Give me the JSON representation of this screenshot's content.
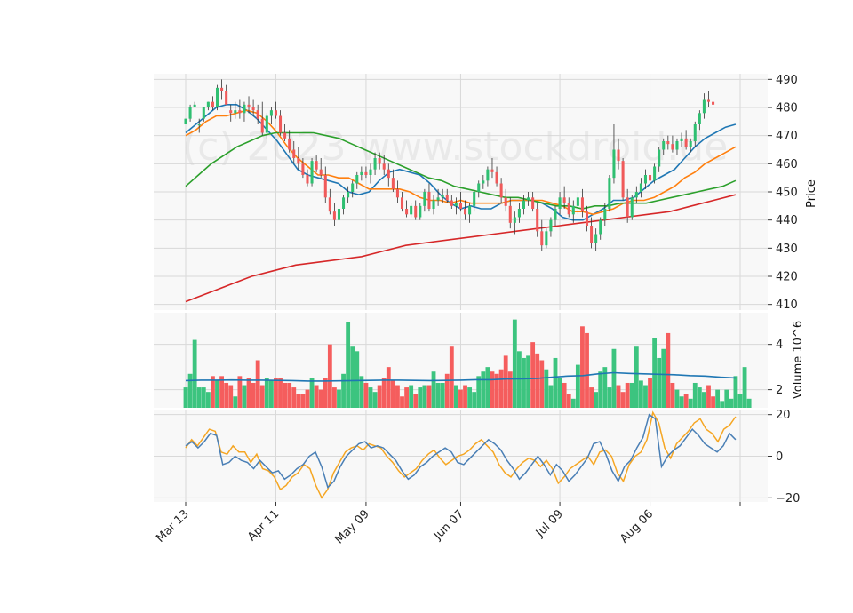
{
  "watermark": "(c) 2023 www.stockdroid.de",
  "chart_data": {
    "type": "candlestick",
    "x_axis": {
      "tick_labels": [
        "Mar 13",
        "Apr 11",
        "May 09",
        "Jun 07",
        "Jul 09",
        "Aug 06"
      ],
      "tick_index": [
        0,
        20,
        40,
        61,
        83,
        103
      ],
      "extra_tick_index": 123,
      "n_bars": 123
    },
    "price_panel": {
      "ylabel": "Price",
      "ylim": [
        408,
        492
      ],
      "yticks": [
        410,
        420,
        430,
        440,
        450,
        460,
        470,
        480,
        490
      ],
      "candles": [
        [
          474,
          476,
          474,
          476
        ],
        [
          476,
          481,
          475,
          480
        ],
        [
          480,
          482,
          480,
          481
        ],
        [
          474,
          476,
          471,
          474
        ],
        [
          476,
          480,
          475,
          480
        ],
        [
          480,
          482,
          479,
          482
        ],
        [
          482,
          484,
          479,
          480
        ],
        [
          480,
          488,
          479,
          487
        ],
        [
          487,
          490,
          483,
          486
        ],
        [
          486,
          488,
          481,
          481
        ],
        [
          479,
          481,
          475,
          478
        ],
        [
          478,
          482,
          476,
          479
        ],
        [
          479,
          483,
          476,
          478
        ],
        [
          478,
          482,
          475,
          481
        ],
        [
          481,
          484,
          478,
          480
        ],
        [
          480,
          483,
          477,
          479
        ],
        [
          479,
          481,
          474,
          476
        ],
        [
          476,
          482,
          470,
          471
        ],
        [
          471,
          478,
          469,
          477
        ],
        [
          477,
          480,
          474,
          479
        ],
        [
          479,
          482,
          476,
          477
        ],
        [
          477,
          479,
          470,
          471
        ],
        [
          471,
          474,
          468,
          469
        ],
        [
          469,
          472,
          464,
          465
        ],
        [
          465,
          468,
          460,
          462
        ],
        [
          462,
          466,
          458,
          460
        ],
        [
          460,
          462,
          455,
          456
        ],
        [
          456,
          458,
          452,
          453
        ],
        [
          453,
          462,
          452,
          461
        ],
        [
          461,
          463,
          457,
          458
        ],
        [
          458,
          462,
          455,
          456
        ],
        [
          456,
          459,
          446,
          448
        ],
        [
          448,
          451,
          442,
          443
        ],
        [
          443,
          446,
          438,
          440
        ],
        [
          440,
          446,
          437,
          444
        ],
        [
          444,
          449,
          442,
          448
        ],
        [
          448,
          452,
          446,
          450
        ],
        [
          450,
          454,
          448,
          453
        ],
        [
          453,
          457,
          451,
          456
        ],
        [
          456,
          459,
          454,
          457
        ],
        [
          457,
          459,
          455,
          456
        ],
        [
          456,
          460,
          453,
          458
        ],
        [
          458,
          464,
          456,
          462
        ],
        [
          462,
          464,
          458,
          460
        ],
        [
          460,
          463,
          456,
          458
        ],
        [
          458,
          460,
          452,
          455
        ],
        [
          455,
          458,
          450,
          451
        ],
        [
          451,
          454,
          446,
          448
        ],
        [
          448,
          450,
          443,
          444
        ],
        [
          444,
          447,
          441,
          442
        ],
        [
          442,
          446,
          441,
          445
        ],
        [
          445,
          447,
          440,
          441
        ],
        [
          441,
          446,
          440,
          445
        ],
        [
          445,
          451,
          443,
          450
        ],
        [
          450,
          453,
          443,
          444
        ],
        [
          444,
          449,
          442,
          447
        ],
        [
          447,
          451,
          445,
          448
        ],
        [
          448,
          451,
          446,
          449
        ],
        [
          449,
          451,
          446,
          447
        ],
        [
          447,
          449,
          444,
          445
        ],
        [
          445,
          448,
          442,
          446
        ],
        [
          446,
          450,
          443,
          444
        ],
        [
          444,
          447,
          440,
          442
        ],
        [
          442,
          446,
          439,
          445
        ],
        [
          445,
          451,
          443,
          450
        ],
        [
          450,
          454,
          448,
          453
        ],
        [
          453,
          456,
          451,
          454
        ],
        [
          454,
          459,
          452,
          458
        ],
        [
          458,
          462,
          455,
          457
        ],
        [
          457,
          459,
          452,
          453
        ],
        [
          453,
          455,
          446,
          448
        ],
        [
          448,
          451,
          443,
          445
        ],
        [
          445,
          448,
          437,
          439
        ],
        [
          439,
          443,
          435,
          441
        ],
        [
          441,
          446,
          439,
          444
        ],
        [
          444,
          449,
          442,
          447
        ],
        [
          447,
          450,
          445,
          448
        ],
        [
          448,
          450,
          443,
          444
        ],
        [
          444,
          446,
          434,
          436
        ],
        [
          436,
          440,
          429,
          431
        ],
        [
          431,
          437,
          430,
          436
        ],
        [
          436,
          441,
          434,
          440
        ],
        [
          440,
          445,
          438,
          444
        ],
        [
          444,
          450,
          442,
          448
        ],
        [
          448,
          452,
          444,
          446
        ],
        [
          446,
          448,
          441,
          442
        ],
        [
          442,
          447,
          439,
          445
        ],
        [
          445,
          450,
          442,
          448
        ],
        [
          448,
          451,
          441,
          443
        ],
        [
          443,
          445,
          436,
          438
        ],
        [
          438,
          441,
          430,
          432
        ],
        [
          432,
          437,
          429,
          435
        ],
        [
          435,
          441,
          433,
          440
        ],
        [
          440,
          446,
          438,
          444
        ],
        [
          444,
          456,
          443,
          455
        ],
        [
          455,
          474,
          453,
          465
        ],
        [
          465,
          469,
          458,
          461
        ],
        [
          461,
          462,
          447,
          448
        ],
        [
          448,
          451,
          439,
          441
        ],
        [
          441,
          449,
          440,
          448
        ],
        [
          448,
          452,
          446,
          450
        ],
        [
          450,
          455,
          448,
          453
        ],
        [
          453,
          458,
          451,
          456
        ],
        [
          456,
          459,
          452,
          454
        ],
        [
          454,
          460,
          453,
          459
        ],
        [
          459,
          466,
          457,
          465
        ],
        [
          465,
          469,
          463,
          468
        ],
        [
          468,
          470,
          465,
          467
        ],
        [
          467,
          470,
          464,
          465
        ],
        [
          465,
          469,
          463,
          468
        ],
        [
          468,
          471,
          466,
          469
        ],
        [
          469,
          472,
          465,
          466
        ],
        [
          466,
          469,
          464,
          468
        ],
        [
          468,
          475,
          466,
          474
        ],
        [
          474,
          479,
          472,
          478
        ],
        [
          478,
          485,
          476,
          483
        ],
        [
          483,
          486,
          480,
          482
        ],
        [
          482,
          484,
          480,
          481
        ]
      ],
      "ma_lines": [
        {
          "color": "#1f77b4",
          "values": [
            471,
            474,
            477,
            480,
            481,
            481,
            479,
            476,
            472,
            468,
            463,
            458,
            456,
            455,
            454,
            453,
            450,
            449,
            450,
            454,
            457,
            458,
            457,
            456,
            453,
            449,
            446,
            444,
            445,
            444,
            444,
            446,
            447,
            447,
            447,
            446,
            444,
            441,
            440,
            440,
            442,
            444,
            447,
            447,
            448,
            451,
            454,
            456,
            458,
            462,
            466,
            469,
            471,
            473,
            474
          ]
        },
        {
          "color": "#ff7f0e",
          "values": [
            470,
            472,
            475,
            477,
            477,
            478,
            479,
            478,
            475,
            471,
            466,
            462,
            459,
            456,
            456,
            455,
            455,
            453,
            451,
            451,
            451,
            451,
            450,
            448,
            447,
            447,
            446,
            447,
            446,
            446,
            446,
            446,
            447,
            447,
            447,
            447,
            446,
            445,
            443,
            443,
            442,
            443,
            444,
            446,
            447,
            447,
            448,
            450,
            452,
            455,
            457,
            460,
            462,
            464,
            466
          ]
        },
        {
          "color": "#2ca02c",
          "values": [
            452,
            456,
            460,
            463,
            466,
            468,
            470,
            471,
            471,
            471,
            471,
            470,
            469,
            467,
            465,
            463,
            461,
            459,
            457,
            455,
            454,
            452,
            451,
            450,
            449,
            448,
            448,
            447,
            446,
            445,
            445,
            444,
            445,
            445,
            446,
            446,
            446,
            447,
            448,
            449,
            450,
            451,
            452,
            454
          ]
        },
        {
          "color": "#d62728",
          "values": [
            411,
            414,
            417,
            420,
            422,
            424,
            425,
            426,
            427,
            429,
            431,
            432,
            433,
            434,
            435,
            436,
            437,
            438,
            439,
            440,
            441,
            442,
            443,
            445,
            447,
            449
          ]
        }
      ]
    },
    "volume_panel": {
      "ylabel": "Volume  10^6",
      "ylim": [
        1.2,
        5.4
      ],
      "yticks": [
        2,
        4
      ],
      "bars": [
        2.1,
        2.7,
        4.2,
        2.1,
        2.1,
        1.9,
        2.6,
        2.4,
        2.6,
        2.3,
        2.2,
        1.7,
        2.6,
        2.2,
        2.5,
        2.3,
        3.3,
        2.2,
        2.5,
        2.4,
        2.5,
        2.5,
        2.3,
        2.3,
        2.1,
        1.8,
        1.8,
        2.0,
        2.5,
        2.2,
        2.0,
        2.5,
        4.0,
        2.1,
        2.0,
        2.7,
        5.0,
        3.9,
        3.7,
        2.6,
        2.3,
        2.1,
        1.9,
        2.2,
        2.5,
        3.0,
        2.4,
        2.2,
        1.7,
        2.1,
        2.2,
        1.8,
        2.1,
        2.2,
        2.2,
        2.8,
        2.3,
        2.3,
        2.7,
        3.9,
        2.2,
        2.0,
        2.2,
        2.1,
        1.9,
        2.6,
        2.8,
        3.0,
        2.8,
        2.7,
        2.9,
        3.5,
        2.8,
        5.1,
        3.7,
        3.4,
        3.5,
        4.1,
        3.6,
        3.3,
        2.9,
        2.2,
        3.4,
        2.5,
        2.3,
        1.8,
        1.6,
        3.1,
        4.8,
        4.5,
        2.1,
        1.9,
        2.8,
        3.0,
        2.1,
        3.8,
        2.2,
        1.9,
        2.3,
        2.3,
        3.9,
        2.4,
        2.2,
        2.5,
        4.3,
        3.4,
        3.8,
        4.5,
        2.3,
        2.0,
        1.7,
        1.8,
        1.6,
        2.3,
        2.1,
        1.9,
        2.2,
        1.7,
        2.0,
        1.5,
        2.0,
        1.6,
        2.6,
        1.8,
        3.0,
        1.6
      ],
      "average": [
        2.4,
        2.42,
        2.42,
        2.43,
        2.42,
        2.42,
        2.41,
        2.4,
        2.38,
        2.38,
        2.39,
        2.4,
        2.41,
        2.42,
        2.42,
        2.41,
        2.4,
        2.41,
        2.42,
        2.44,
        2.44,
        2.47,
        2.48,
        2.5,
        2.55,
        2.6,
        2.62,
        2.7,
        2.75,
        2.72,
        2.7,
        2.68,
        2.66,
        2.62,
        2.6,
        2.55,
        2.52
      ]
    },
    "oscillator_panel": {
      "ylim": [
        -22,
        22
      ],
      "yticks": [
        -20,
        0,
        20
      ],
      "lines": [
        {
          "color": "#f5a623",
          "values": [
            4,
            8,
            5,
            9,
            13,
            12,
            2,
            1,
            5,
            2,
            2,
            -3,
            1,
            -6,
            -7,
            -10,
            -16,
            -14,
            -10,
            -8,
            -4,
            -6,
            -14,
            -20,
            -16,
            -8,
            -3,
            2,
            4,
            5,
            3,
            6,
            5,
            4,
            0,
            -3,
            -7,
            -10,
            -8,
            -6,
            -2,
            1,
            3,
            -1,
            -4,
            -2,
            0,
            1,
            3,
            6,
            8,
            5,
            2,
            -4,
            -8,
            -10,
            -6,
            -3,
            -1,
            -2,
            -5,
            -2,
            -6,
            -13,
            -10,
            -6,
            -4,
            -2,
            0,
            -4,
            2,
            3,
            0,
            -8,
            -12,
            -4,
            0,
            2,
            8,
            21,
            16,
            4,
            -1,
            6,
            9,
            12,
            16,
            18,
            13,
            11,
            7,
            13,
            15,
            19
          ]
        },
        {
          "color": "#4a7fb5",
          "values": [
            5,
            7,
            4,
            7,
            11,
            10,
            -4,
            -3,
            0,
            -2,
            -3,
            -6,
            -2,
            -5,
            -8,
            -7,
            -11,
            -9,
            -6,
            -4,
            0,
            2,
            -5,
            -15,
            -12,
            -5,
            0,
            3,
            6,
            7,
            4,
            5,
            4,
            1,
            -2,
            -7,
            -11,
            -9,
            -5,
            -3,
            0,
            2,
            4,
            2,
            -3,
            -4,
            -1,
            2,
            5,
            8,
            6,
            3,
            -2,
            -6,
            -11,
            -8,
            -4,
            0,
            -4,
            -9,
            -4,
            -7,
            -12,
            -9,
            -5,
            -1,
            6,
            7,
            1,
            -7,
            -12,
            -5,
            -2,
            4,
            9,
            20,
            18,
            -5,
            0,
            3,
            5,
            9,
            13,
            10,
            6,
            4,
            2,
            5,
            11,
            8
          ]
        }
      ]
    }
  }
}
